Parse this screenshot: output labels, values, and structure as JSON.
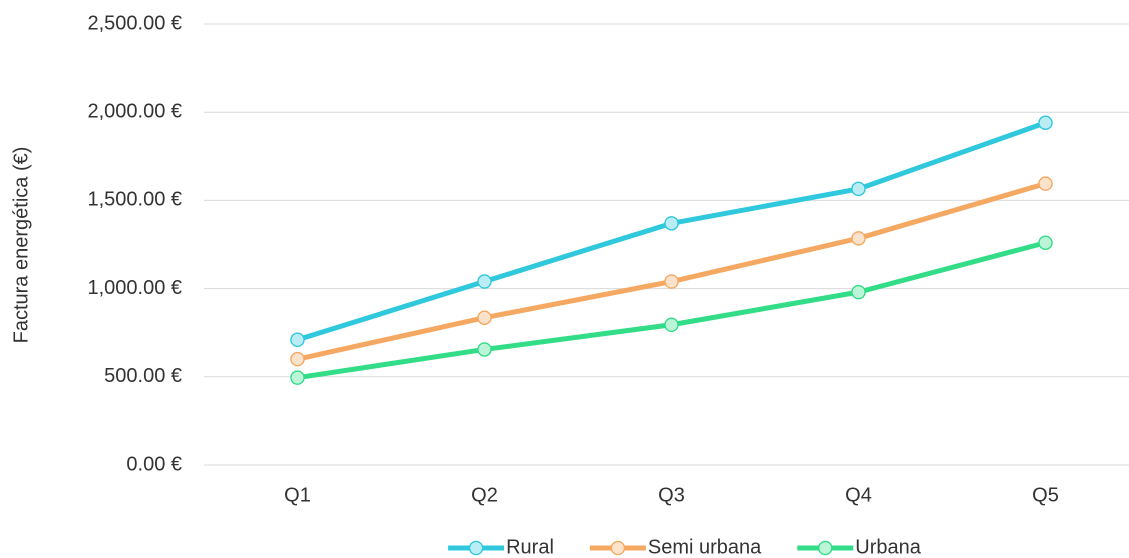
{
  "chart_data": {
    "type": "line",
    "y_label": "Factura energética (€)",
    "categories": [
      "Q1",
      "Q2",
      "Q3",
      "Q4",
      "Q5"
    ],
    "series": [
      {
        "name": "Rural",
        "color": "#30c8dc",
        "values": [
          710,
          1040,
          1370,
          1565,
          1940
        ]
      },
      {
        "name": "Semi urbana",
        "color": "#f5a862",
        "values": [
          600,
          835,
          1040,
          1285,
          1595
        ]
      },
      {
        "name": "Urbana",
        "color": "#33dd88",
        "values": [
          495,
          655,
          795,
          980,
          1260
        ]
      }
    ],
    "ylim": [
      0,
      2500
    ],
    "yticks": [
      {
        "value": 0,
        "label": "0.00 €"
      },
      {
        "value": 500,
        "label": "500.00 €"
      },
      {
        "value": 1000,
        "label": "1,000.00 €"
      },
      {
        "value": 1500,
        "label": "1,500.00 €"
      },
      {
        "value": 2000,
        "label": "2,000.00 €"
      },
      {
        "value": 2500,
        "label": "2,500.00 €"
      }
    ],
    "grid": true,
    "legend": "bottom"
  }
}
